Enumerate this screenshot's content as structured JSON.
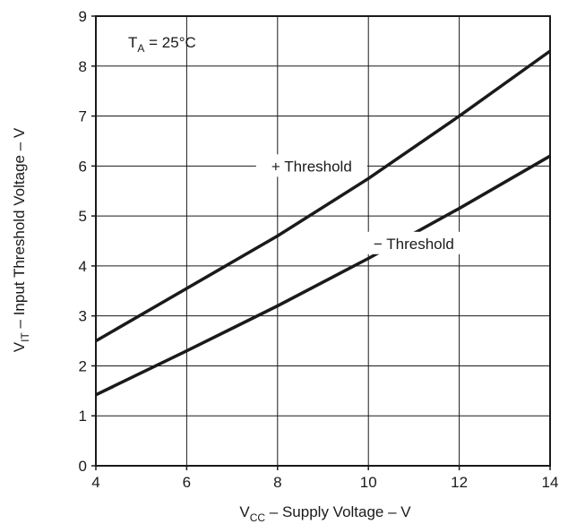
{
  "chart_data": {
    "type": "line",
    "xlabel": {
      "main": "V",
      "sub": "CC",
      "rest": " – Supply Voltage – V"
    },
    "ylabel": {
      "main": "V",
      "sub": "IT",
      "rest": " – Input Threshold Voltage – V"
    },
    "xlim": [
      4,
      14
    ],
    "ylim": [
      0,
      9
    ],
    "xticks": [
      4,
      6,
      8,
      10,
      12,
      14
    ],
    "yticks": [
      0,
      1,
      2,
      3,
      4,
      5,
      6,
      7,
      8,
      9
    ],
    "grid": true,
    "annotation": {
      "main": "T",
      "sub": "A",
      "rest": " = 25°C"
    },
    "series": [
      {
        "name": "+ Threshold",
        "x": [
          4,
          6,
          8,
          10,
          12,
          14
        ],
        "y": [
          2.5,
          3.55,
          4.6,
          5.75,
          7.0,
          8.3
        ]
      },
      {
        "name": "− Threshold",
        "x": [
          4,
          6,
          8,
          10,
          12,
          14
        ],
        "y": [
          1.42,
          2.3,
          3.2,
          4.15,
          5.15,
          6.2
        ]
      }
    ]
  },
  "colors": {
    "line": "#1a1a1a",
    "grid": "#1a1a1a",
    "background": "#ffffff"
  }
}
